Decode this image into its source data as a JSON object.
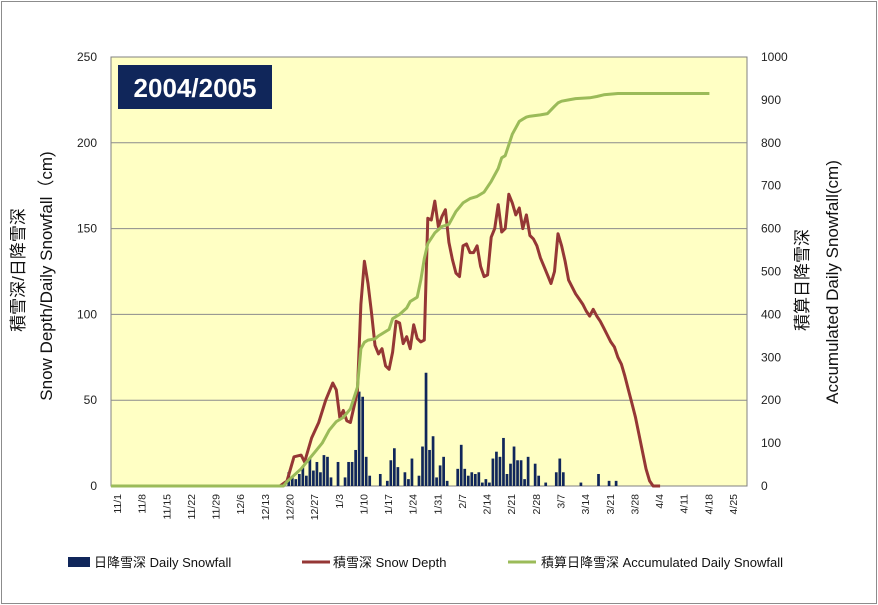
{
  "chart_data": {
    "type": "bar+line",
    "title": "2004/2005",
    "x_categories": [
      "11/1",
      "11/8",
      "11/15",
      "11/22",
      "11/29",
      "12/6",
      "12/13",
      "12/20",
      "12/27",
      "1/3",
      "1/10",
      "1/17",
      "1/24",
      "1/31",
      "2/7",
      "2/14",
      "2/21",
      "2/28",
      "3/7",
      "3/14",
      "3/21",
      "3/28",
      "4/4",
      "4/11",
      "4/18",
      "4/25"
    ],
    "y_left": {
      "label_line1": "積雪深/日降雪深",
      "label_line2": "Snow Depth/Daily Snowfall（cm)",
      "ylim": [
        0,
        250
      ],
      "ticks": [
        "0",
        "50",
        "100",
        "150",
        "200",
        "250"
      ]
    },
    "y_right": {
      "label_line1": "積算日降雪深",
      "label_line2": "Accumulated Daily Snowfall(cm)",
      "ylim": [
        0,
        1000
      ],
      "ticks": [
        "0",
        "100",
        "200",
        "300",
        "400",
        "500",
        "600",
        "700",
        "800",
        "900",
        "1000"
      ]
    },
    "grid": "horizontal",
    "legend_position": "bottom",
    "colors": {
      "plot_bg": "#ffffc4",
      "bar": "#10265a",
      "snow_depth": "#953735",
      "accumulated": "#9bbb59",
      "badge_bg": "#10265a"
    },
    "series": [
      {
        "name": "日降雪深 Daily Snowfall",
        "type": "bar",
        "axis": "left",
        "day0": "11/1",
        "points": [
          [
            50,
            8
          ],
          [
            51,
            5
          ],
          [
            52,
            4
          ],
          [
            53,
            7
          ],
          [
            54,
            11
          ],
          [
            55,
            6
          ],
          [
            56,
            16
          ],
          [
            57,
            9
          ],
          [
            58,
            14
          ],
          [
            59,
            8
          ],
          [
            60,
            18
          ],
          [
            61,
            17
          ],
          [
            62,
            5
          ],
          [
            64,
            14
          ],
          [
            66,
            5
          ],
          [
            67,
            14
          ],
          [
            68,
            14
          ],
          [
            69,
            21
          ],
          [
            70,
            55
          ],
          [
            71,
            52
          ],
          [
            72,
            17
          ],
          [
            73,
            6
          ],
          [
            76,
            7
          ],
          [
            78,
            3
          ],
          [
            79,
            15
          ],
          [
            80,
            22
          ],
          [
            81,
            11
          ],
          [
            83,
            8
          ],
          [
            84,
            4
          ],
          [
            85,
            16
          ],
          [
            87,
            6
          ],
          [
            88,
            23
          ],
          [
            89,
            66
          ],
          [
            90,
            21
          ],
          [
            91,
            29
          ],
          [
            92,
            5
          ],
          [
            93,
            12
          ],
          [
            94,
            17
          ],
          [
            95,
            3
          ],
          [
            98,
            10
          ],
          [
            99,
            24
          ],
          [
            100,
            10
          ],
          [
            101,
            6
          ],
          [
            102,
            8
          ],
          [
            103,
            7
          ],
          [
            104,
            8
          ],
          [
            105,
            2
          ],
          [
            106,
            4
          ],
          [
            107,
            2
          ],
          [
            108,
            16
          ],
          [
            109,
            20
          ],
          [
            110,
            17
          ],
          [
            111,
            28
          ],
          [
            112,
            7
          ],
          [
            113,
            13
          ],
          [
            114,
            23
          ],
          [
            115,
            15
          ],
          [
            116,
            15
          ],
          [
            117,
            4
          ],
          [
            118,
            17
          ],
          [
            120,
            13
          ],
          [
            121,
            6
          ],
          [
            123,
            2
          ],
          [
            126,
            8
          ],
          [
            127,
            16
          ],
          [
            128,
            8
          ],
          [
            133,
            2
          ],
          [
            138,
            7
          ],
          [
            141,
            3
          ],
          [
            143,
            3
          ]
        ]
      },
      {
        "name": "積雪深 Snow Depth",
        "type": "line",
        "axis": "left",
        "day0": "11/1",
        "points": [
          [
            0,
            0
          ],
          [
            48,
            0
          ],
          [
            50,
            3
          ],
          [
            52,
            17
          ],
          [
            54,
            18
          ],
          [
            55,
            14
          ],
          [
            57,
            28
          ],
          [
            59,
            37
          ],
          [
            61,
            50
          ],
          [
            63,
            60
          ],
          [
            64,
            56
          ],
          [
            65,
            40
          ],
          [
            66,
            44
          ],
          [
            67,
            38
          ],
          [
            68,
            37
          ],
          [
            69,
            46
          ],
          [
            70,
            55
          ],
          [
            71,
            106
          ],
          [
            72,
            131
          ],
          [
            73,
            118
          ],
          [
            74,
            101
          ],
          [
            75,
            82
          ],
          [
            76,
            77
          ],
          [
            77,
            80
          ],
          [
            78,
            70
          ],
          [
            79,
            68
          ],
          [
            80,
            78
          ],
          [
            81,
            96
          ],
          [
            82,
            95
          ],
          [
            83,
            83
          ],
          [
            84,
            87
          ],
          [
            85,
            80
          ],
          [
            86,
            94
          ],
          [
            87,
            86
          ],
          [
            88,
            84
          ],
          [
            89,
            85
          ],
          [
            90,
            156
          ],
          [
            91,
            155
          ],
          [
            92,
            166
          ],
          [
            93,
            151
          ],
          [
            94,
            157
          ],
          [
            95,
            161
          ],
          [
            96,
            142
          ],
          [
            97,
            132
          ],
          [
            98,
            124
          ],
          [
            99,
            122
          ],
          [
            100,
            140
          ],
          [
            101,
            141
          ],
          [
            102,
            136
          ],
          [
            103,
            136
          ],
          [
            104,
            140
          ],
          [
            105,
            128
          ],
          [
            106,
            122
          ],
          [
            107,
            123
          ],
          [
            108,
            145
          ],
          [
            109,
            150
          ],
          [
            110,
            164
          ],
          [
            111,
            148
          ],
          [
            112,
            150
          ],
          [
            113,
            170
          ],
          [
            114,
            165
          ],
          [
            115,
            158
          ],
          [
            116,
            162
          ],
          [
            117,
            150
          ],
          [
            118,
            158
          ],
          [
            119,
            146
          ],
          [
            120,
            144
          ],
          [
            121,
            140
          ],
          [
            122,
            133
          ],
          [
            123,
            128
          ],
          [
            124,
            123
          ],
          [
            125,
            118
          ],
          [
            126,
            125
          ],
          [
            127,
            147
          ],
          [
            128,
            140
          ],
          [
            129,
            131
          ],
          [
            130,
            120
          ],
          [
            131,
            116
          ],
          [
            132,
            112
          ],
          [
            133,
            109
          ],
          [
            134,
            106
          ],
          [
            135,
            102
          ],
          [
            136,
            99
          ],
          [
            137,
            103
          ],
          [
            138,
            99
          ],
          [
            139,
            96
          ],
          [
            140,
            92
          ],
          [
            141,
            88
          ],
          [
            142,
            84
          ],
          [
            143,
            81
          ],
          [
            144,
            75
          ],
          [
            145,
            71
          ],
          [
            146,
            64
          ],
          [
            147,
            56
          ],
          [
            148,
            48
          ],
          [
            149,
            40
          ],
          [
            150,
            30
          ],
          [
            151,
            20
          ],
          [
            152,
            10
          ],
          [
            153,
            3
          ],
          [
            154,
            0
          ],
          [
            156,
            0
          ]
        ]
      },
      {
        "name": "積算日降雪深 Accumulated Daily Snowfall",
        "type": "line",
        "axis": "right",
        "day0": "11/1",
        "points": [
          [
            0,
            0
          ],
          [
            49,
            0
          ],
          [
            50,
            10
          ],
          [
            52,
            25
          ],
          [
            54,
            40
          ],
          [
            56,
            60
          ],
          [
            58,
            80
          ],
          [
            60,
            100
          ],
          [
            62,
            130
          ],
          [
            64,
            150
          ],
          [
            66,
            160
          ],
          [
            68,
            180
          ],
          [
            69,
            205
          ],
          [
            70,
            230
          ],
          [
            71,
            320
          ],
          [
            72,
            335
          ],
          [
            73,
            340
          ],
          [
            75,
            343
          ],
          [
            76,
            350
          ],
          [
            79,
            365
          ],
          [
            80,
            390
          ],
          [
            82,
            400
          ],
          [
            84,
            415
          ],
          [
            85,
            430
          ],
          [
            87,
            440
          ],
          [
            88,
            480
          ],
          [
            89,
            530
          ],
          [
            90,
            565
          ],
          [
            92,
            590
          ],
          [
            94,
            605
          ],
          [
            96,
            610
          ],
          [
            98,
            640
          ],
          [
            100,
            660
          ],
          [
            102,
            670
          ],
          [
            104,
            675
          ],
          [
            106,
            685
          ],
          [
            108,
            710
          ],
          [
            110,
            740
          ],
          [
            111,
            765
          ],
          [
            112,
            770
          ],
          [
            113,
            795
          ],
          [
            114,
            820
          ],
          [
            115,
            835
          ],
          [
            116,
            850
          ],
          [
            117,
            855
          ],
          [
            118,
            860
          ],
          [
            119,
            862
          ],
          [
            122,
            865
          ],
          [
            124,
            868
          ],
          [
            126,
            885
          ],
          [
            127,
            893
          ],
          [
            128,
            897
          ],
          [
            130,
            900
          ],
          [
            132,
            903
          ],
          [
            136,
            905
          ],
          [
            138,
            908
          ],
          [
            140,
            912
          ],
          [
            144,
            915
          ],
          [
            170,
            915
          ]
        ]
      }
    ]
  },
  "legend": {
    "items": [
      {
        "label": "日降雪深 Daily Snowfall"
      },
      {
        "label": "積雪深 Snow Depth"
      },
      {
        "label": "積算日降雪深 Accumulated Daily Snowfall"
      }
    ]
  }
}
